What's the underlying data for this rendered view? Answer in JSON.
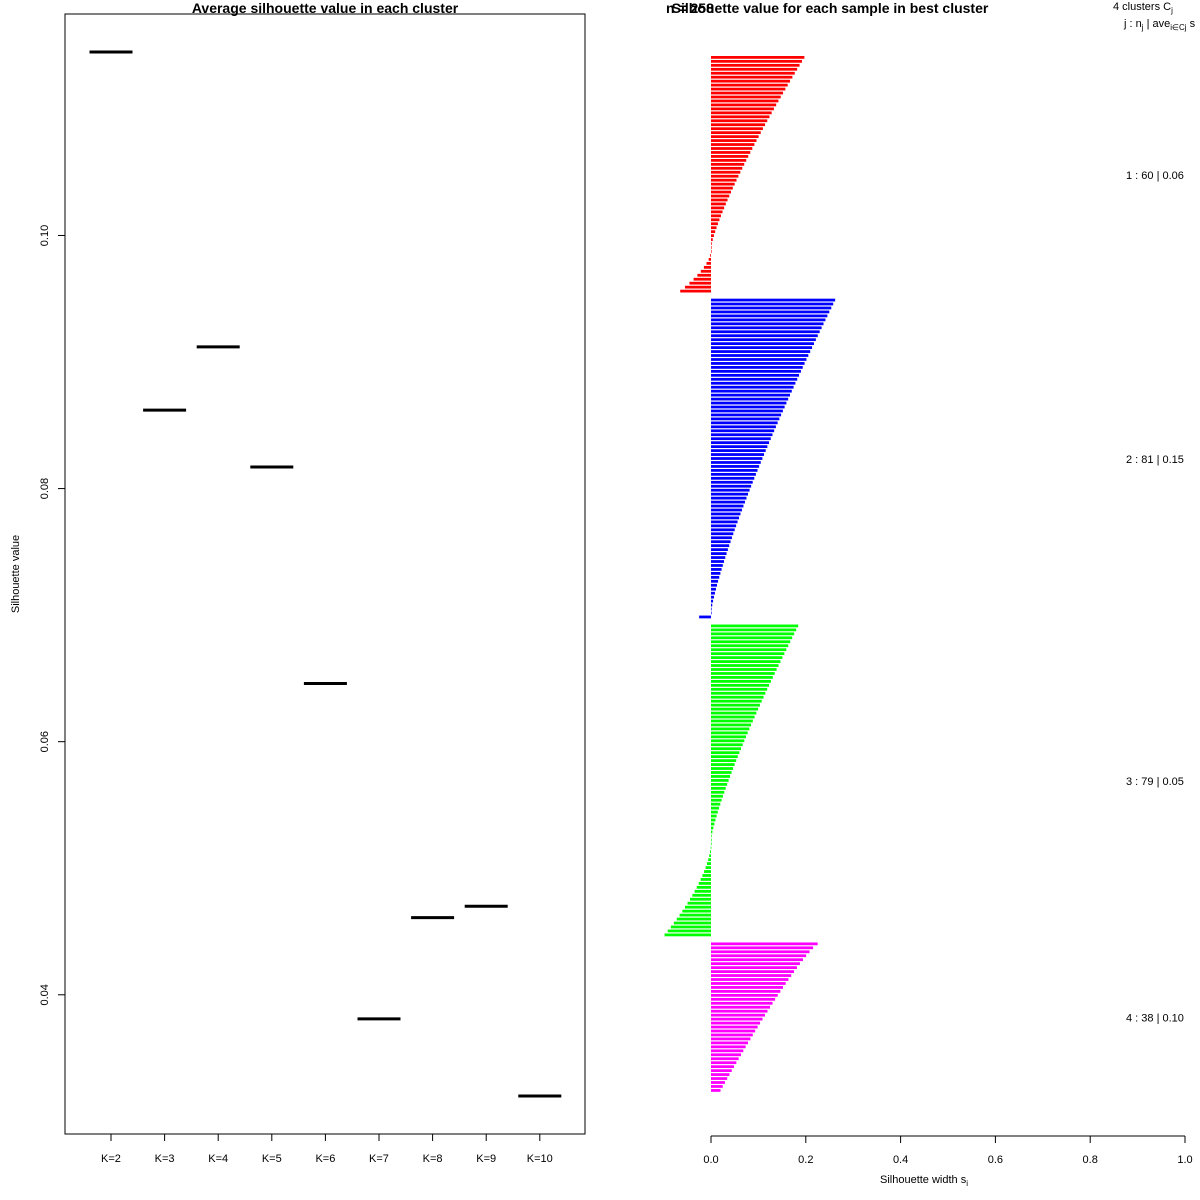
{
  "chart_data": [
    {
      "type": "line",
      "title": "Average silhouette value in each cluster",
      "xlabel": "",
      "ylabel": "Silhouette value",
      "categories": [
        "K=2",
        "K=3",
        "K=4",
        "K=5",
        "K=6",
        "K=7",
        "K=8",
        "K=9",
        "K=10"
      ],
      "values": [
        0.1145,
        0.0862,
        0.0912,
        0.0817,
        0.0646,
        0.0381,
        0.0461,
        0.047,
        0.032
      ],
      "yticks": [
        "0.04",
        "0.06",
        "0.08",
        "0.10"
      ],
      "ylim": [
        0.029,
        0.1175
      ],
      "grid": false
    },
    {
      "type": "bar",
      "orientation": "horizontal",
      "title": "Silhouette value for each sample in best cluster",
      "overlay_title": "n = 258",
      "xlabel": "Silhouette width s",
      "xlabel_subscript": "i",
      "xlim": [
        0,
        1
      ],
      "xticks": [
        "0.0",
        "0.2",
        "0.4",
        "0.6",
        "0.8",
        "1.0"
      ],
      "legend_header": "4  clusters  C",
      "legend_header_sub": "j",
      "legend_subheader": "j :  n",
      "legend_subheader_sub": "j",
      "legend_subheader_rest": " | ave",
      "legend_subheader_sub2": "i∈Cj",
      "legend_subheader_tail": "  s",
      "clusters": [
        {
          "label": "1 :  60  |  0.06",
          "color": "#FF0000",
          "n": 60,
          "max": 0.197,
          "min": -0.065,
          "negative_count": 11
        },
        {
          "label": "2 :  81  |  0.15",
          "color": "#0000FF",
          "n": 81,
          "max": 0.262,
          "min": -0.025,
          "negative_count": 1
        },
        {
          "label": "3 :  79  |  0.05",
          "color": "#00FF00",
          "n": 79,
          "max": 0.184,
          "min": -0.098,
          "negative_count": 24
        },
        {
          "label": "4 :  38  |  0.10",
          "color": "#FF00FF",
          "n": 38,
          "max": 0.225,
          "min": 0.02,
          "negative_count": 0
        }
      ]
    }
  ]
}
